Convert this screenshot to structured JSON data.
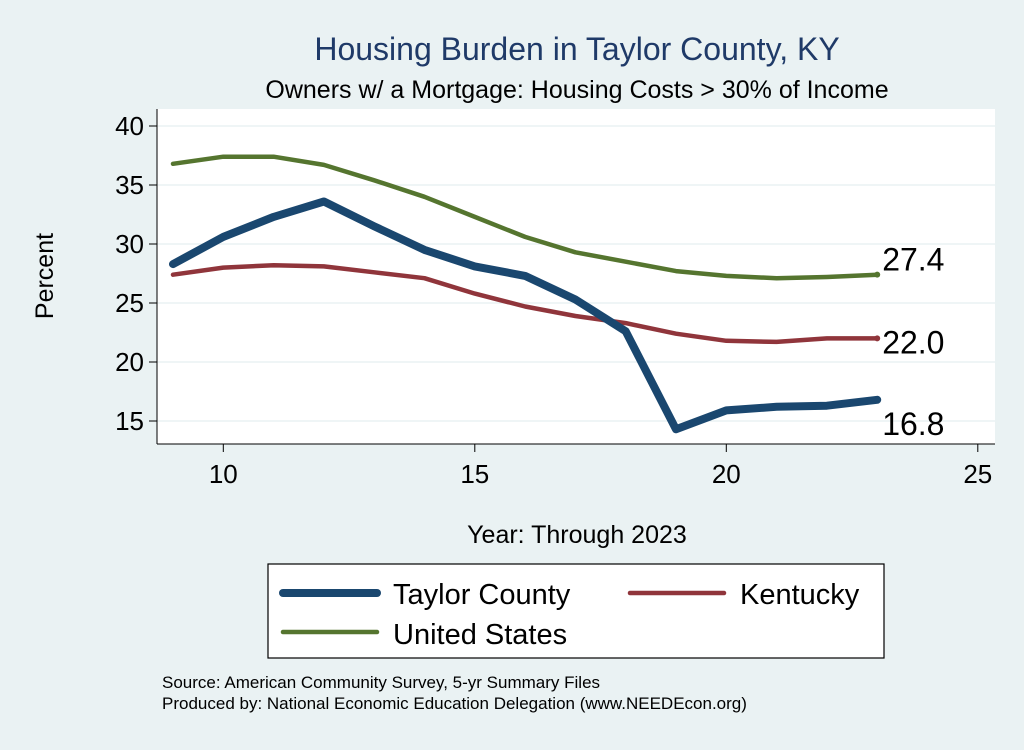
{
  "colors": {
    "background": "#eaf2f3",
    "plot_bg": "#ffffff",
    "title": "#1f3a68",
    "grid": "#eaf2f3"
  },
  "chart_data": {
    "type": "line",
    "title": "Housing Burden in Taylor County, KY",
    "subtitle": "Owners w/ a Mortgage: Housing Costs > 30% of Income",
    "xlabel": "Year: Through 2023",
    "ylabel": "Percent",
    "xlim": [
      8.7,
      25.0
    ],
    "ylim": [
      13.0,
      41.0
    ],
    "xticks": [
      10,
      15,
      20,
      25
    ],
    "yticks": [
      15,
      20,
      25,
      30,
      35,
      40
    ],
    "grid": true,
    "legend_placement": "bottom",
    "x": [
      9,
      10,
      11,
      12,
      13,
      14,
      15,
      16,
      17,
      18,
      19,
      20,
      21,
      22,
      23
    ],
    "series": [
      {
        "name": "Taylor County",
        "color": "#1a476f",
        "values": [
          28.3,
          30.6,
          32.3,
          33.6,
          31.5,
          29.5,
          28.1,
          27.3,
          25.3,
          22.6,
          14.3,
          15.9,
          16.2,
          16.3,
          16.8
        ],
        "end_label": "16.8"
      },
      {
        "name": "Kentucky",
        "color": "#90353b",
        "values": [
          27.4,
          28.0,
          28.2,
          28.1,
          27.6,
          27.1,
          25.8,
          24.7,
          23.9,
          23.3,
          22.4,
          21.8,
          21.7,
          22.0,
          22.0
        ],
        "end_label": "22.0"
      },
      {
        "name": "United States",
        "color": "#55752f",
        "values": [
          36.8,
          37.4,
          37.4,
          36.7,
          35.4,
          34.0,
          32.3,
          30.6,
          29.3,
          28.5,
          27.7,
          27.3,
          27.1,
          27.2,
          27.4
        ],
        "end_label": "27.4"
      }
    ]
  },
  "footer": {
    "source": "Source: American Community Survey, 5-yr Summary Files",
    "produced_by": "Produced by: National Economic Education Delegation (www.NEEDEcon.org)"
  }
}
